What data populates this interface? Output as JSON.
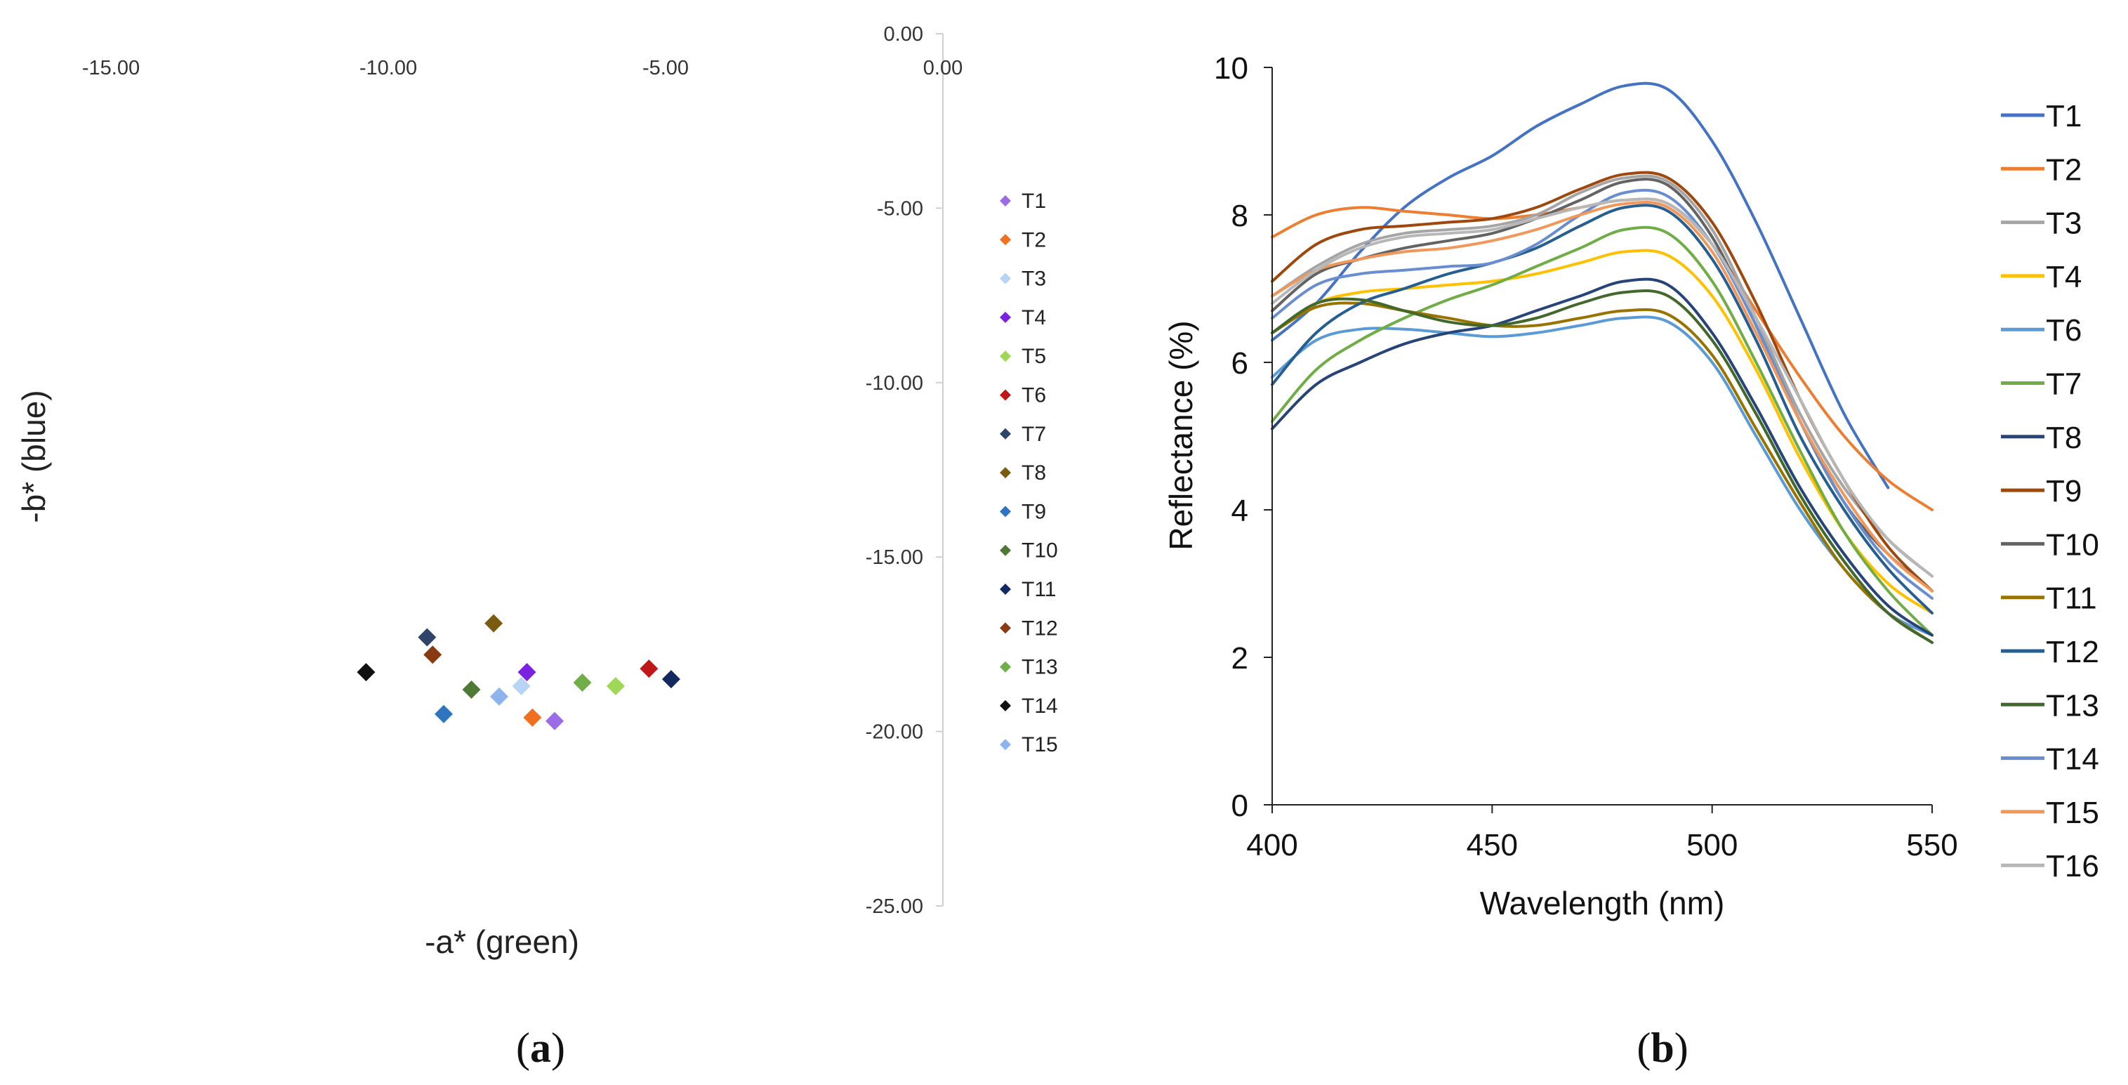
{
  "chart_data": [
    {
      "type": "scatter",
      "panel_label_prefix": "(",
      "panel_label_letter": "a",
      "panel_label_suffix": ")",
      "xlabel": "-a* (green)",
      "ylabel": "-b* (blue)",
      "xlim": [
        -15,
        0
      ],
      "ylim": [
        -25,
        0
      ],
      "x_ticks": [
        "-15.00",
        "-10.00",
        "-5.00",
        "0.00"
      ],
      "y_ticks": [
        "0.00",
        "-5.00",
        "-10.00",
        "-15.00",
        "-20.00",
        "-25.00"
      ],
      "legend_position": "right",
      "series": [
        {
          "name": "T1",
          "color": "#9B6BE8",
          "x": -7.0,
          "y": -19.7
        },
        {
          "name": "T2",
          "color": "#F07020",
          "x": -7.4,
          "y": -19.6
        },
        {
          "name": "T3",
          "color": "#B8D4F5",
          "x": -7.6,
          "y": -18.7
        },
        {
          "name": "T4",
          "color": "#7A22E0",
          "x": -7.5,
          "y": -18.3
        },
        {
          "name": "T5",
          "color": "#9ED856",
          "x": -5.9,
          "y": -18.7
        },
        {
          "name": "T6",
          "color": "#C01818",
          "x": -5.3,
          "y": -18.2
        },
        {
          "name": "T7",
          "color": "#2E4468",
          "x": -9.3,
          "y": -17.3
        },
        {
          "name": "T8",
          "color": "#7A5C10",
          "x": -8.1,
          "y": -16.9
        },
        {
          "name": "T9",
          "color": "#2E75C0",
          "x": -9.0,
          "y": -19.5
        },
        {
          "name": "T10",
          "color": "#4E7A36",
          "x": -8.5,
          "y": -18.8
        },
        {
          "name": "T11",
          "color": "#12285E",
          "x": -4.9,
          "y": -18.5
        },
        {
          "name": "T12",
          "color": "#8A3A12",
          "x": -9.2,
          "y": -17.8
        },
        {
          "name": "T13",
          "color": "#6FAE48",
          "x": -6.5,
          "y": -18.6
        },
        {
          "name": "T14",
          "color": "#111111",
          "x": -10.4,
          "y": -18.3
        },
        {
          "name": "T15",
          "color": "#8EB4EE",
          "x": -8.0,
          "y": -19.0
        }
      ]
    },
    {
      "type": "line",
      "panel_label_prefix": "(",
      "panel_label_letter": "b",
      "panel_label_suffix": ")",
      "xlabel": "Wavelength (nm)",
      "ylabel": "Reflectance (%)",
      "xlim": [
        400,
        550
      ],
      "ylim": [
        0,
        10
      ],
      "x_ticks": [
        "400",
        "450",
        "500",
        "550"
      ],
      "y_ticks": [
        "0",
        "2",
        "4",
        "6",
        "8",
        "10"
      ],
      "legend_position": "right",
      "x": [
        400,
        410,
        420,
        430,
        440,
        450,
        460,
        470,
        480,
        490,
        500,
        510,
        520,
        530,
        540,
        550
      ],
      "series": [
        {
          "name": "T1",
          "color": "#4472C4",
          "values": [
            6.3,
            6.8,
            7.5,
            8.1,
            8.5,
            8.8,
            9.2,
            9.5,
            9.75,
            9.7,
            9.0,
            7.9,
            6.6,
            5.3,
            4.3,
            null
          ]
        },
        {
          "name": "T2",
          "color": "#ED7D31",
          "values": [
            7.7,
            8.0,
            8.1,
            8.05,
            8.0,
            7.95,
            8.0,
            8.1,
            8.2,
            8.15,
            7.6,
            6.7,
            5.8,
            5.0,
            4.4,
            4.0
          ]
        },
        {
          "name": "T3",
          "color": "#A5A5A5",
          "values": [
            6.9,
            7.3,
            7.6,
            7.75,
            7.8,
            7.85,
            8.0,
            8.3,
            8.5,
            8.45,
            7.8,
            6.6,
            5.3,
            4.3,
            3.6,
            3.1
          ]
        },
        {
          "name": "T4",
          "color": "#FFC000",
          "values": [
            6.4,
            6.8,
            6.95,
            7.0,
            7.05,
            7.1,
            7.2,
            7.35,
            7.5,
            7.45,
            6.9,
            5.9,
            4.7,
            3.7,
            3.0,
            2.6
          ]
        },
        {
          "name": "T6",
          "color": "#5B9BD5",
          "values": [
            5.8,
            6.3,
            6.45,
            6.45,
            6.4,
            6.35,
            6.4,
            6.5,
            6.6,
            6.55,
            6.0,
            5.0,
            4.0,
            3.2,
            2.6,
            2.3
          ]
        },
        {
          "name": "T7",
          "color": "#70AD47",
          "values": [
            5.2,
            5.9,
            6.3,
            6.6,
            6.85,
            7.05,
            7.3,
            7.55,
            7.8,
            7.75,
            7.1,
            6.0,
            4.8,
            3.7,
            2.9,
            2.3
          ]
        },
        {
          "name": "T8",
          "color": "#264478",
          "values": [
            5.1,
            5.7,
            6.0,
            6.25,
            6.4,
            6.5,
            6.7,
            6.9,
            7.1,
            7.05,
            6.4,
            5.4,
            4.3,
            3.4,
            2.7,
            2.3
          ]
        },
        {
          "name": "T9",
          "color": "#9E480E",
          "values": [
            7.1,
            7.6,
            7.8,
            7.85,
            7.9,
            7.95,
            8.1,
            8.35,
            8.55,
            8.5,
            7.9,
            6.8,
            5.5,
            4.4,
            3.5,
            2.9
          ]
        },
        {
          "name": "T10",
          "color": "#636363",
          "values": [
            6.7,
            7.2,
            7.4,
            7.55,
            7.65,
            7.75,
            7.95,
            8.2,
            8.45,
            8.4,
            7.7,
            6.5,
            5.2,
            4.1,
            3.4,
            2.9
          ]
        },
        {
          "name": "T11",
          "color": "#997300",
          "values": [
            6.4,
            6.75,
            6.8,
            6.7,
            6.6,
            6.5,
            6.5,
            6.6,
            6.7,
            6.65,
            6.1,
            5.1,
            4.1,
            3.2,
            2.6,
            2.2
          ]
        },
        {
          "name": "T12",
          "color": "#255E91",
          "values": [
            5.7,
            6.4,
            6.8,
            7.0,
            7.2,
            7.35,
            7.55,
            7.85,
            8.1,
            8.05,
            7.4,
            6.3,
            5.0,
            4.0,
            3.2,
            2.6
          ]
        },
        {
          "name": "T13",
          "color": "#43682B",
          "values": [
            6.4,
            6.8,
            6.85,
            6.7,
            6.55,
            6.5,
            6.6,
            6.8,
            6.95,
            6.9,
            6.3,
            5.3,
            4.2,
            3.3,
            2.6,
            2.2
          ]
        },
        {
          "name": "T14",
          "color": "#698ED0",
          "values": [
            6.6,
            7.05,
            7.2,
            7.25,
            7.3,
            7.35,
            7.6,
            8.0,
            8.3,
            8.25,
            7.6,
            6.5,
            5.2,
            4.1,
            3.3,
            2.8
          ]
        },
        {
          "name": "T15",
          "color": "#F1975A",
          "values": [
            6.9,
            7.25,
            7.4,
            7.5,
            7.55,
            7.65,
            7.8,
            8.0,
            8.15,
            8.1,
            7.5,
            6.4,
            5.2,
            4.2,
            3.4,
            2.9
          ]
        },
        {
          "name": "T16",
          "color": "#B7B7B7",
          "values": [
            6.8,
            7.25,
            7.55,
            7.7,
            7.75,
            7.8,
            7.95,
            8.1,
            8.2,
            8.15,
            7.6,
            6.6,
            5.5,
            4.4,
            3.6,
            3.1
          ]
        }
      ]
    }
  ]
}
